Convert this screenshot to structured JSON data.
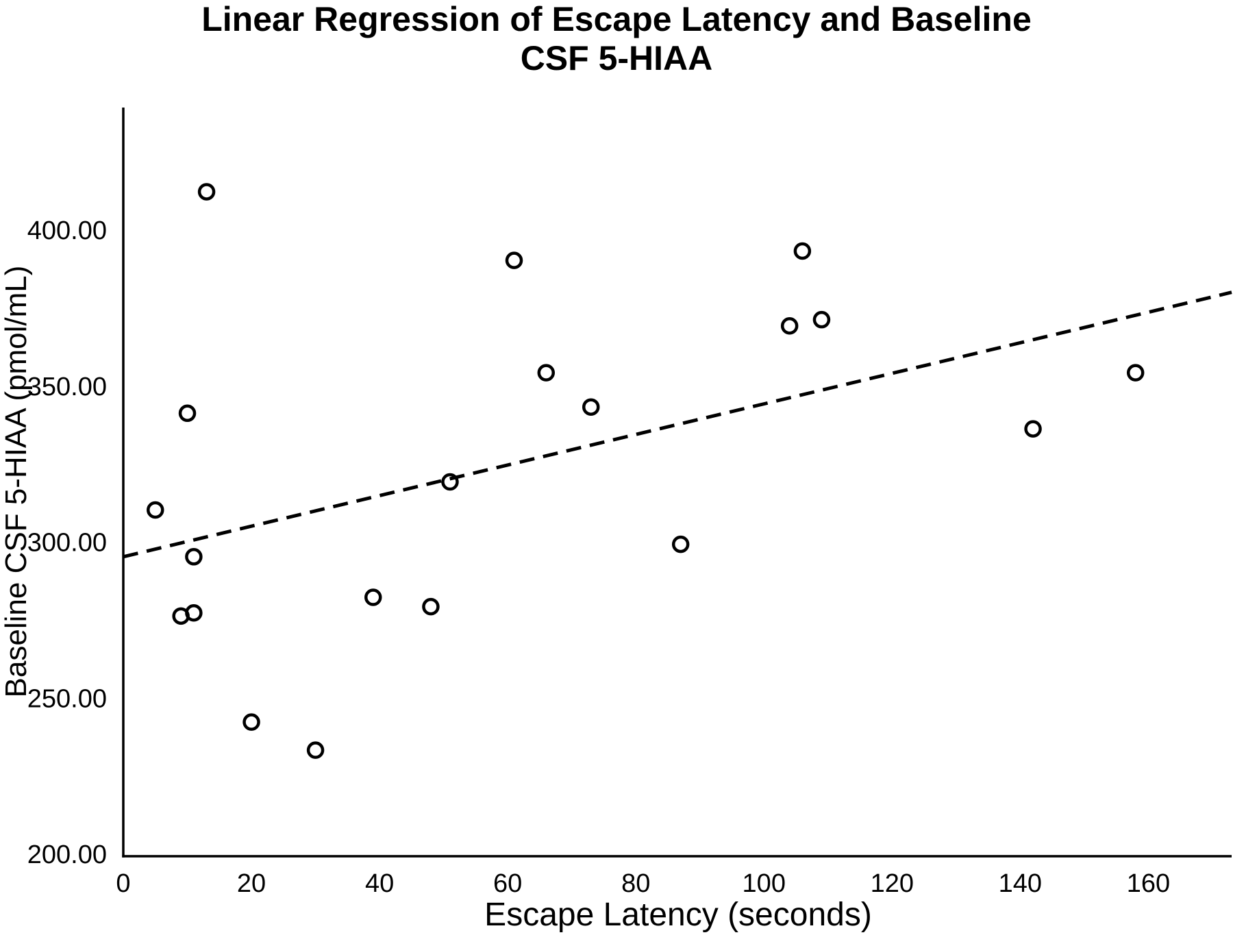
{
  "chart_data": {
    "type": "scatter",
    "title": "Linear Regression of Escape Latency and Baseline CSF 5-HIAA",
    "title_lines": [
      "Linear Regression of Escape Latency and Baseline",
      "CSF 5-HIAA"
    ],
    "xlabel": "Escape Latency (seconds)",
    "ylabel": "Baseline CSF 5-HIAA (pmol/mL)",
    "xlim": [
      0,
      173
    ],
    "ylim": [
      200,
      440
    ],
    "grid": false,
    "legend": "none",
    "x_tick_values": [
      0,
      20,
      40,
      60,
      80,
      100,
      120,
      140,
      160
    ],
    "x_tick_labels": [
      "0",
      "20",
      "40",
      "60",
      "80",
      "100",
      "120",
      "140",
      "160"
    ],
    "y_tick_values": [
      200,
      250,
      300,
      350,
      400
    ],
    "y_tick_labels": [
      "200.00",
      "250.00",
      "300.00",
      "350.00",
      "400.00"
    ],
    "marker": {
      "shape": "open-circle",
      "color": "#000000"
    },
    "points": [
      {
        "x": 5,
        "y": 311
      },
      {
        "x": 9,
        "y": 277
      },
      {
        "x": 10,
        "y": 342
      },
      {
        "x": 11,
        "y": 278
      },
      {
        "x": 11,
        "y": 296
      },
      {
        "x": 13,
        "y": 413
      },
      {
        "x": 20,
        "y": 243
      },
      {
        "x": 30,
        "y": 234
      },
      {
        "x": 39,
        "y": 283
      },
      {
        "x": 48,
        "y": 280
      },
      {
        "x": 51,
        "y": 320
      },
      {
        "x": 61,
        "y": 391
      },
      {
        "x": 66,
        "y": 355
      },
      {
        "x": 73,
        "y": 344
      },
      {
        "x": 87,
        "y": 300
      },
      {
        "x": 104,
        "y": 370
      },
      {
        "x": 106,
        "y": 394
      },
      {
        "x": 109,
        "y": 372
      },
      {
        "x": 142,
        "y": 337
      },
      {
        "x": 158,
        "y": 355
      }
    ],
    "trendline": {
      "style": "dashed",
      "color": "#000000",
      "slope": 0.49,
      "intercept": 296,
      "x_start": 0,
      "x_end": 173
    },
    "colors": {
      "axis": "#000000",
      "text": "#000000",
      "background": "#ffffff"
    }
  }
}
